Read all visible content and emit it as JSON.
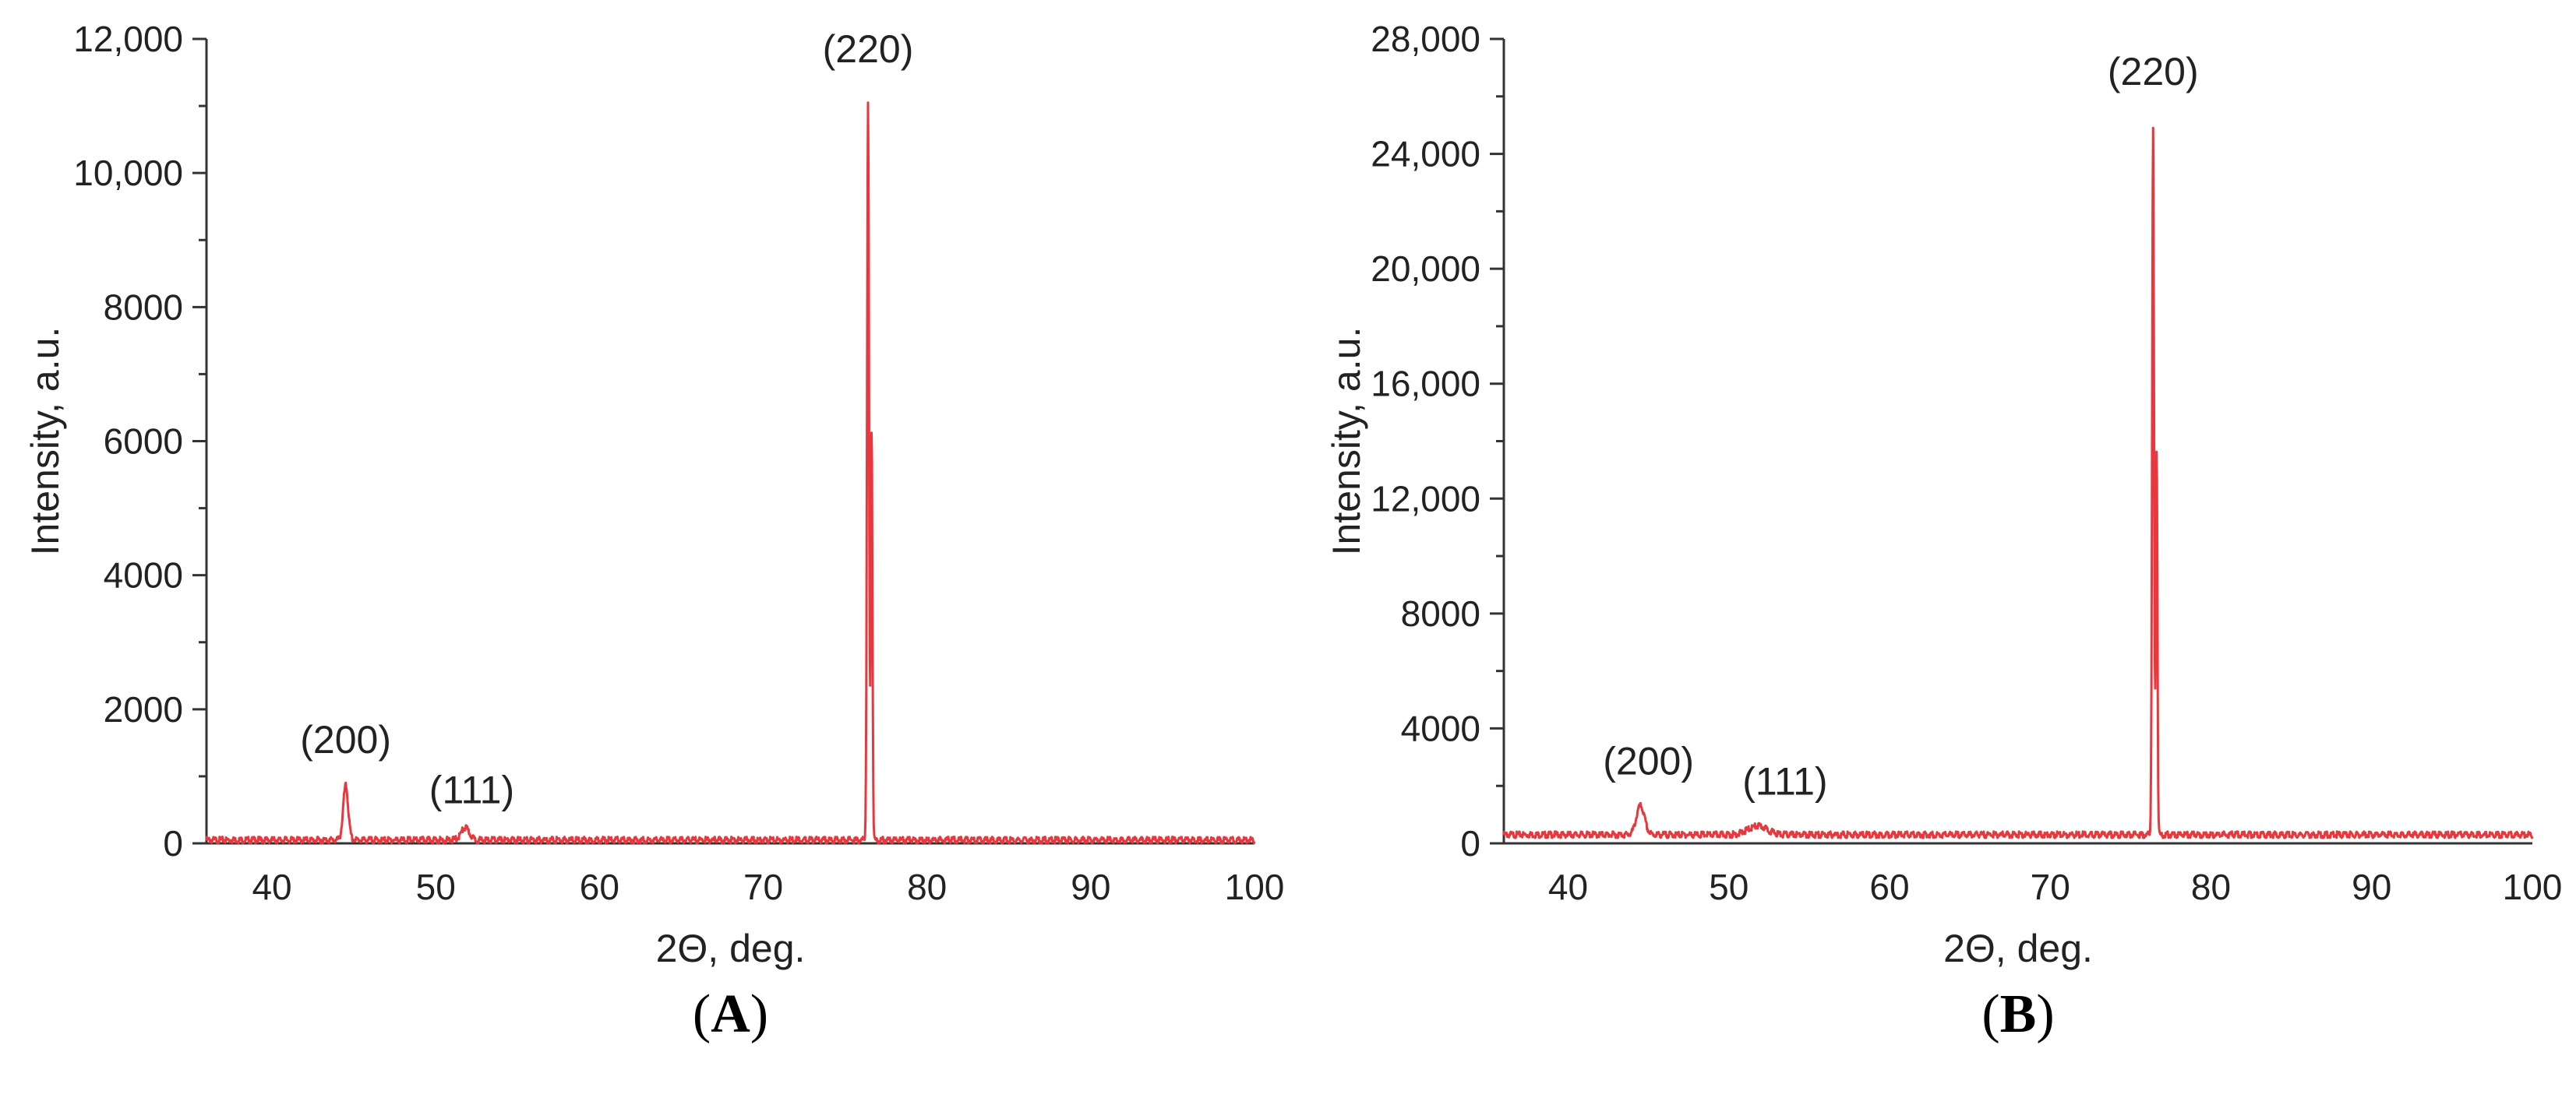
{
  "chart_data": [
    {
      "type": "line",
      "panel_label": "A",
      "xlabel": "2Θ, deg.",
      "ylabel": "Intensity, a.u.",
      "xlim": [
        36,
        100
      ],
      "ylim": [
        0,
        12000
      ],
      "x_ticks": [
        40,
        50,
        60,
        70,
        80,
        90,
        100
      ],
      "y_ticks": [
        0,
        2000,
        4000,
        6000,
        8000,
        10000,
        12000
      ],
      "y_tick_labels": [
        "0",
        "2000",
        "4000",
        "6000",
        "8000",
        "10,000",
        "12,000"
      ],
      "line_color": "#e8383d",
      "grid": false,
      "baseline": 50,
      "peaks": [
        {
          "label": "(200)",
          "x": 44.5,
          "y": 860,
          "width": 0.15
        },
        {
          "label": "(111)",
          "x": 51.8,
          "y": 230,
          "width": 0.25
        },
        {
          "label": "(220)",
          "x": 76.4,
          "y": 11050,
          "width": 0.06
        }
      ],
      "peak_shoulder": {
        "x": 76.62,
        "y": 6200,
        "width": 0.05
      },
      "annotations": [
        {
          "text": "(200)",
          "x": 44.5,
          "y": 1350
        },
        {
          "text": "(111)",
          "x": 52.2,
          "y": 600
        },
        {
          "text": "(220)",
          "x": 76.4,
          "y": 11650
        }
      ]
    },
    {
      "type": "line",
      "panel_label": "B",
      "xlabel": "2Θ, deg.",
      "ylabel": "Intensity, a.u.",
      "xlim": [
        36,
        100
      ],
      "ylim": [
        0,
        28000
      ],
      "x_ticks": [
        40,
        50,
        60,
        70,
        80,
        90,
        100
      ],
      "y_ticks": [
        0,
        4000,
        8000,
        12000,
        16000,
        20000,
        24000,
        28000
      ],
      "y_tick_labels": [
        "0",
        "4000",
        "8000",
        "12,000",
        "16,000",
        "20,000",
        "24,000",
        "28,000"
      ],
      "line_color": "#e8383d",
      "grid": false,
      "baseline": 300,
      "peaks": [
        {
          "label": "(200)",
          "x": 44.5,
          "y": 1300,
          "width": 0.25
        },
        {
          "label": "(111)",
          "x": 51.8,
          "y": 600,
          "width": 0.6
        },
        {
          "label": "(220)",
          "x": 76.4,
          "y": 24900,
          "width": 0.06
        }
      ],
      "peak_shoulder": {
        "x": 76.62,
        "y": 13800,
        "width": 0.05
      },
      "annotations": [
        {
          "text": "(200)",
          "x": 45.0,
          "y": 2400
        },
        {
          "text": "(111)",
          "x": 53.5,
          "y": 1700
        },
        {
          "text": "(220)",
          "x": 76.4,
          "y": 26400
        }
      ]
    }
  ]
}
